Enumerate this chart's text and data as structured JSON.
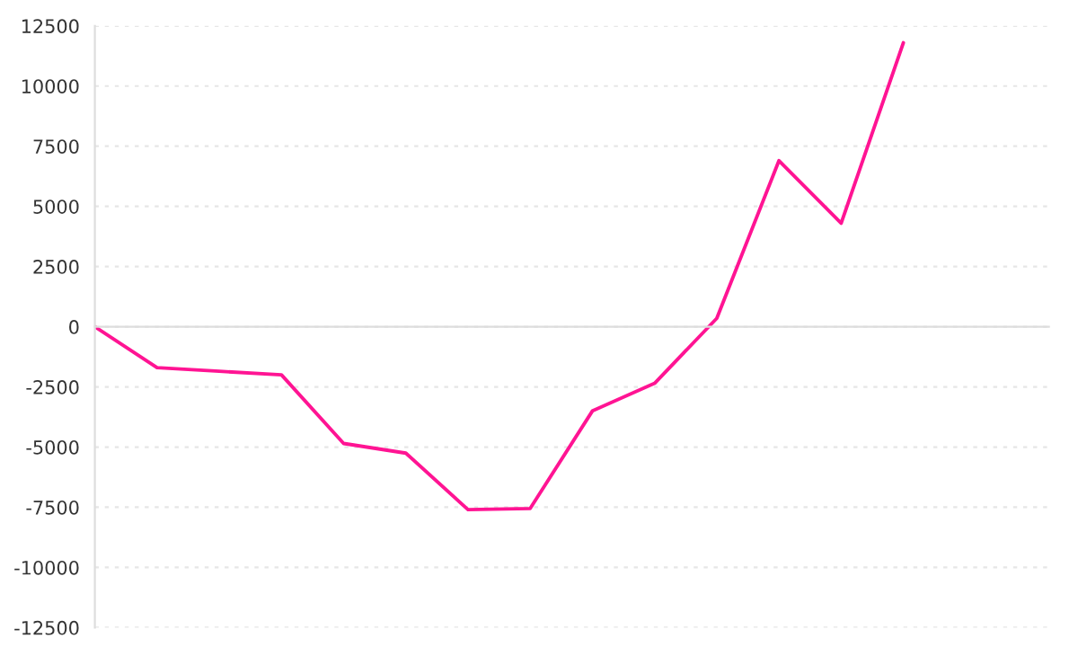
{
  "chart_data": {
    "type": "line",
    "categories": [
      null,
      null,
      null,
      null,
      null,
      null,
      null,
      null,
      null,
      null,
      null,
      null,
      null,
      null
    ],
    "series": [
      {
        "color": "#ff1493",
        "values": [
          0,
          -1700,
          -1850,
          -2000,
          -4850,
          -5250,
          -7600,
          -7550,
          -3500,
          -2350,
          350,
          6900,
          4300,
          11800
        ]
      }
    ],
    "ylim": [
      -12500,
      12500
    ],
    "yticks": [
      -12500,
      -10000,
      -7500,
      -5000,
      -2500,
      0,
      2500,
      5000,
      7500,
      10000,
      12500
    ],
    "grid": "y",
    "tick_labels": "y",
    "marker": "none",
    "line_style": "solid"
  }
}
